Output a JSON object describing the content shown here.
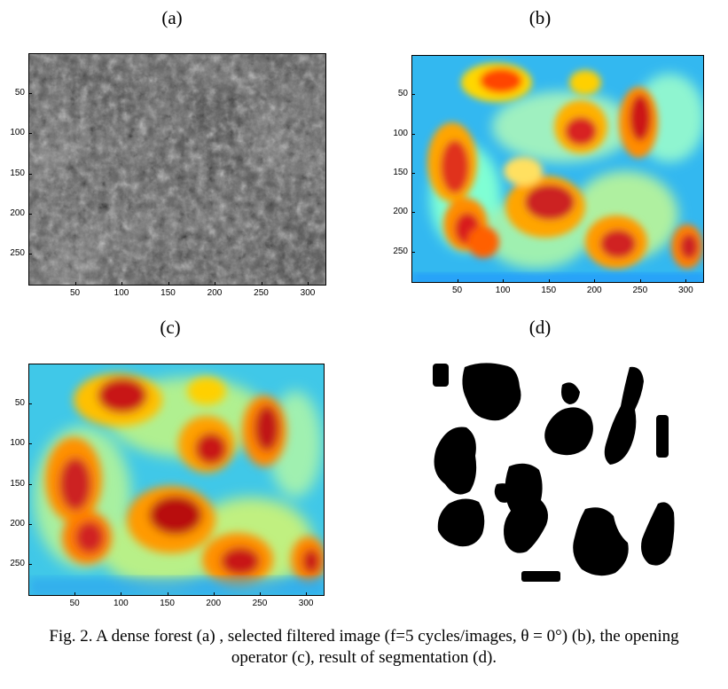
{
  "figure": {
    "panels": [
      {
        "id": "a",
        "label": "(a)",
        "kind": "grayscale-image",
        "x_ticks": [
          "50",
          "100",
          "150",
          "200",
          "250",
          "300"
        ],
        "y_ticks": [
          "50",
          "100",
          "150",
          "200",
          "250"
        ]
      },
      {
        "id": "b",
        "label": "(b)",
        "kind": "jet-heatmap",
        "x_ticks": [
          "50",
          "100",
          "150",
          "200",
          "250",
          "300"
        ],
        "y_ticks": [
          "50",
          "100",
          "150",
          "200",
          "250"
        ]
      },
      {
        "id": "c",
        "label": "(c)",
        "kind": "jet-heatmap-smoothed",
        "x_ticks": [
          "50",
          "100",
          "150",
          "200",
          "250",
          "300"
        ],
        "y_ticks": [
          "50",
          "100",
          "150",
          "200",
          "250"
        ]
      },
      {
        "id": "d",
        "label": "(d)",
        "kind": "binary-segmentation",
        "x_ticks": [],
        "y_ticks": []
      }
    ],
    "caption_line1": "Fig. 2. A dense forest (a) , selected filtered image (f=5 cycles/images, θ = 0°) (b), the opening",
    "caption_line2": "operator (c), result of segmentation (d).",
    "colors": {
      "jet_low": "#1e90ff",
      "jet_mid": "#7fffd4",
      "jet_high": "#b22222",
      "mask": "#000000"
    }
  }
}
